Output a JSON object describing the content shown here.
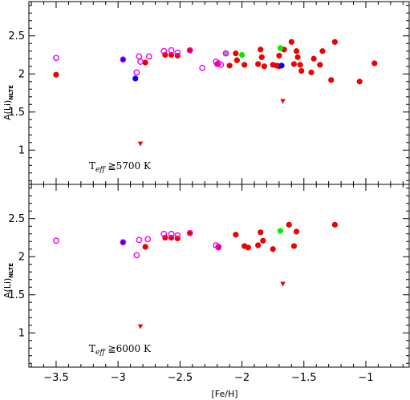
{
  "chart_data": [
    {
      "type": "scatter",
      "panel": "top",
      "annotation": {
        "main": "T",
        "sub": "eff",
        "rest": " ≧5700 K"
      },
      "ylabel": {
        "main": "A(Li)",
        "sub": "NLTE"
      },
      "xlabel": "[Fe/H]",
      "xlim": [
        -3.72,
        -0.65
      ],
      "ylim": [
        0.55,
        2.95
      ],
      "yticks": [
        1,
        1.5,
        2,
        2.5
      ],
      "ytick_labels": [
        "1",
        "1.5",
        "2",
        "2.5"
      ],
      "xticks": [
        -3.5,
        -3,
        -2.5,
        -2,
        -1.5,
        -1
      ],
      "series": [
        {
          "marker": "filled-circle",
          "color": "#ee0000",
          "points": [
            [
              -3.5,
              1.99
            ],
            [
              -2.78,
              2.15
            ],
            [
              -2.62,
              2.25
            ],
            [
              -2.57,
              2.25
            ],
            [
              -2.52,
              2.24
            ],
            [
              -2.2,
              2.13
            ],
            [
              -2.1,
              2.11
            ],
            [
              -2.05,
              2.27
            ],
            [
              -2.04,
              2.18
            ],
            [
              -1.98,
              2.12
            ],
            [
              -1.87,
              2.13
            ],
            [
              -1.85,
              2.32
            ],
            [
              -1.84,
              2.22
            ],
            [
              -1.82,
              2.1
            ],
            [
              -1.75,
              2.12
            ],
            [
              -1.72,
              2.11
            ],
            [
              -1.7,
              2.24
            ],
            [
              -1.7,
              2.1
            ],
            [
              -1.66,
              2.32
            ],
            [
              -1.6,
              2.42
            ],
            [
              -1.58,
              2.13
            ],
            [
              -1.56,
              2.3
            ],
            [
              -1.55,
              2.22
            ],
            [
              -1.53,
              2.12
            ],
            [
              -1.52,
              2.04
            ],
            [
              -1.44,
              2.02
            ],
            [
              -1.42,
              2.2
            ],
            [
              -1.37,
              2.12
            ],
            [
              -1.35,
              2.3
            ],
            [
              -1.28,
              1.92
            ],
            [
              -1.25,
              2.42
            ],
            [
              -1.05,
              1.9
            ],
            [
              -0.93,
              2.14
            ]
          ]
        },
        {
          "marker": "open-circle",
          "color": "#ee00ee",
          "points": [
            [
              -3.5,
              2.21
            ],
            [
              -2.85,
              2.02
            ],
            [
              -2.83,
              2.23
            ],
            [
              -2.82,
              2.16
            ],
            [
              -2.75,
              2.23
            ],
            [
              -2.63,
              2.3
            ],
            [
              -2.57,
              2.31
            ],
            [
              -2.52,
              2.28
            ],
            [
              -2.32,
              2.08
            ],
            [
              -2.21,
              2.16
            ],
            [
              -2.19,
              2.14
            ],
            [
              -2.17,
              2.12
            ]
          ]
        },
        {
          "marker": "filled-circle",
          "color": "#0000ee",
          "points": [
            [
              -2.86,
              1.94
            ],
            [
              -1.68,
              2.11
            ]
          ]
        },
        {
          "marker": "blue-with-magenta-ring",
          "color": "#0000ee",
          "points": [
            [
              -2.96,
              2.19
            ]
          ]
        },
        {
          "marker": "red-with-magenta-ring",
          "color": "#ee0000",
          "points": [
            [
              -2.42,
              2.31
            ]
          ]
        },
        {
          "marker": "grey-with-magenta-ring",
          "color": "#999999",
          "points": [
            [
              -2.13,
              2.27
            ]
          ]
        },
        {
          "marker": "filled-circle",
          "color": "#00ee00",
          "points": [
            [
              -2.0,
              2.25
            ],
            [
              -1.69,
              2.34
            ]
          ]
        },
        {
          "marker": "triangle-down",
          "color": "#ee0000",
          "points": [
            [
              -2.82,
              1.08
            ],
            [
              -1.67,
              1.64
            ]
          ]
        }
      ]
    },
    {
      "type": "scatter",
      "panel": "bottom",
      "annotation": {
        "main": "T",
        "sub": "eff",
        "rest": " ≧6000 K"
      },
      "ylabel": {
        "main": "A(Li)",
        "sub": "NLTE"
      },
      "xlabel": "[Fe/H]",
      "xlim": [
        -3.72,
        -0.65
      ],
      "ylim": [
        0.55,
        2.95
      ],
      "yticks": [
        1,
        1.5,
        2,
        2.5
      ],
      "ytick_labels": [
        "1",
        "1.5",
        "2",
        "2.5"
      ],
      "xticks": [
        -3.5,
        -3,
        -2.5,
        -2,
        -1.5,
        -1
      ],
      "xtick_labels": [
        "−3.5",
        "−3",
        "−2.5",
        "−2",
        "−1.5",
        "−1"
      ],
      "series": [
        {
          "marker": "filled-circle",
          "color": "#ee0000",
          "points": [
            [
              -2.78,
              2.13
            ],
            [
              -2.62,
              2.25
            ],
            [
              -2.57,
              2.25
            ],
            [
              -2.52,
              2.24
            ],
            [
              -2.19,
              2.12
            ],
            [
              -2.05,
              2.29
            ],
            [
              -1.98,
              2.14
            ],
            [
              -1.95,
              2.12
            ],
            [
              -1.87,
              2.15
            ],
            [
              -1.85,
              2.32
            ],
            [
              -1.83,
              2.21
            ],
            [
              -1.75,
              2.1
            ],
            [
              -1.62,
              2.42
            ],
            [
              -1.58,
              2.14
            ],
            [
              -1.56,
              2.33
            ],
            [
              -1.25,
              2.42
            ]
          ]
        },
        {
          "marker": "open-circle",
          "color": "#ee00ee",
          "points": [
            [
              -3.5,
              2.21
            ],
            [
              -2.85,
              2.02
            ],
            [
              -2.83,
              2.22
            ],
            [
              -2.76,
              2.23
            ],
            [
              -2.63,
              2.3
            ],
            [
              -2.57,
              2.3
            ],
            [
              -2.52,
              2.28
            ],
            [
              -2.21,
              2.15
            ],
            [
              -2.19,
              2.13
            ]
          ]
        },
        {
          "marker": "blue-with-magenta-ring",
          "color": "#0000ee",
          "points": [
            [
              -2.96,
              2.19
            ]
          ]
        },
        {
          "marker": "red-with-magenta-ring",
          "color": "#ee0000",
          "points": [
            [
              -2.42,
              2.31
            ]
          ]
        },
        {
          "marker": "filled-circle",
          "color": "#00ee00",
          "points": [
            [
              -1.69,
              2.34
            ]
          ]
        },
        {
          "marker": "triangle-down",
          "color": "#ee0000",
          "points": [
            [
              -2.82,
              1.08
            ],
            [
              -1.67,
              1.64
            ]
          ]
        }
      ]
    }
  ]
}
